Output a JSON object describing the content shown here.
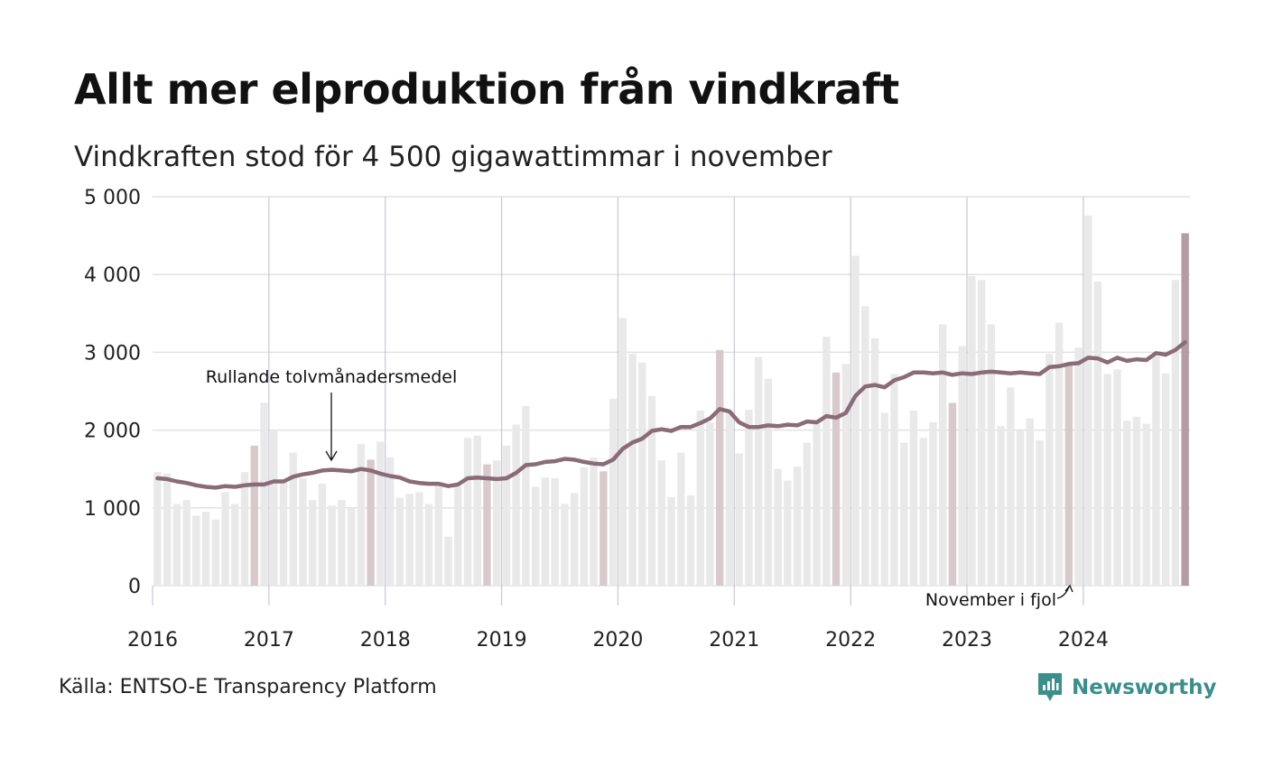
{
  "title": "Allt mer elproduktion från vindkraft",
  "subtitle": "Vindkraften stod för 4 500 gigawattimmar i november",
  "source": "Källa: ENTSO-E Transparency Platform",
  "brand": {
    "name": "Newsworthy",
    "icon": "newsworthy-logo-icon",
    "color": "#3a8f8b"
  },
  "colors": {
    "bar": "#e9e9e9",
    "bar_november": "#d8c9cc",
    "bar_latest": "#b39da3",
    "line": "#8a6c78",
    "grid": "#e2e2e2",
    "year_line": "#c8c8d4"
  },
  "chart_data": {
    "type": "bar",
    "start": "2016-01",
    "ylim": [
      0,
      5000
    ],
    "y_ticks": [
      "0",
      "1 000",
      "2 000",
      "3 000",
      "4 000",
      "5 000"
    ],
    "y_tick_values": [
      0,
      1000,
      2000,
      3000,
      4000,
      5000
    ],
    "x_ticks": [
      "2016",
      "2017",
      "2018",
      "2019",
      "2020",
      "2021",
      "2022",
      "2023",
      "2024"
    ],
    "grid": true,
    "series": [
      {
        "type": "bar",
        "values": [
          1460,
          1440,
          1050,
          1100,
          900,
          950,
          850,
          1200,
          1050,
          1460,
          1800,
          2350,
          2000,
          1350,
          1710,
          1380,
          1100,
          1310,
          1030,
          1100,
          1000,
          1820,
          1620,
          1850,
          1650,
          1130,
          1180,
          1200,
          1050,
          1290,
          630,
          1280,
          1900,
          1930,
          1560,
          1610,
          1800,
          2070,
          2310,
          1270,
          1390,
          1380,
          1050,
          1190,
          1520,
          1650,
          1470,
          2400,
          3440,
          2980,
          2870,
          2440,
          1610,
          1140,
          1710,
          1160,
          2250,
          2100,
          3030,
          2250,
          1700,
          2260,
          2940,
          2660,
          1500,
          1350,
          1530,
          1840,
          2100,
          3200,
          2740,
          2850,
          4240,
          3590,
          3180,
          2220,
          2720,
          1840,
          2250,
          1900,
          2100,
          3360,
          2350,
          3080,
          3980,
          3930,
          3360,
          2050,
          2550,
          2000,
          2150,
          1870,
          2980,
          3380,
          2860,
          3060,
          4760,
          3910,
          2720,
          2780,
          2120,
          2170,
          2080,
          2950,
          2730,
          3930,
          4530
        ]
      },
      {
        "type": "line",
        "name": "Rullande tolvmånadersmedel",
        "values": [
          1380,
          1370,
          1340,
          1320,
          1290,
          1270,
          1260,
          1280,
          1270,
          1290,
          1300,
          1300,
          1340,
          1340,
          1400,
          1430,
          1450,
          1480,
          1490,
          1480,
          1470,
          1500,
          1480,
          1440,
          1410,
          1390,
          1340,
          1320,
          1310,
          1310,
          1280,
          1300,
          1380,
          1390,
          1380,
          1370,
          1380,
          1450,
          1550,
          1560,
          1590,
          1600,
          1630,
          1620,
          1590,
          1570,
          1560,
          1620,
          1760,
          1840,
          1890,
          1990,
          2010,
          1990,
          2040,
          2040,
          2090,
          2150,
          2270,
          2240,
          2100,
          2040,
          2040,
          2060,
          2050,
          2070,
          2060,
          2110,
          2100,
          2180,
          2160,
          2220,
          2440,
          2560,
          2580,
          2550,
          2640,
          2680,
          2740,
          2740,
          2730,
          2740,
          2710,
          2730,
          2720,
          2740,
          2750,
          2740,
          2730,
          2740,
          2730,
          2720,
          2810,
          2820,
          2850,
          2860,
          2930,
          2920,
          2870,
          2930,
          2890,
          2910,
          2900,
          2990,
          2970,
          3030,
          3130
        ]
      }
    ],
    "annotations": [
      {
        "text": "Rullande tolvmånadersmedel"
      },
      {
        "text": "November i fjol"
      }
    ]
  }
}
